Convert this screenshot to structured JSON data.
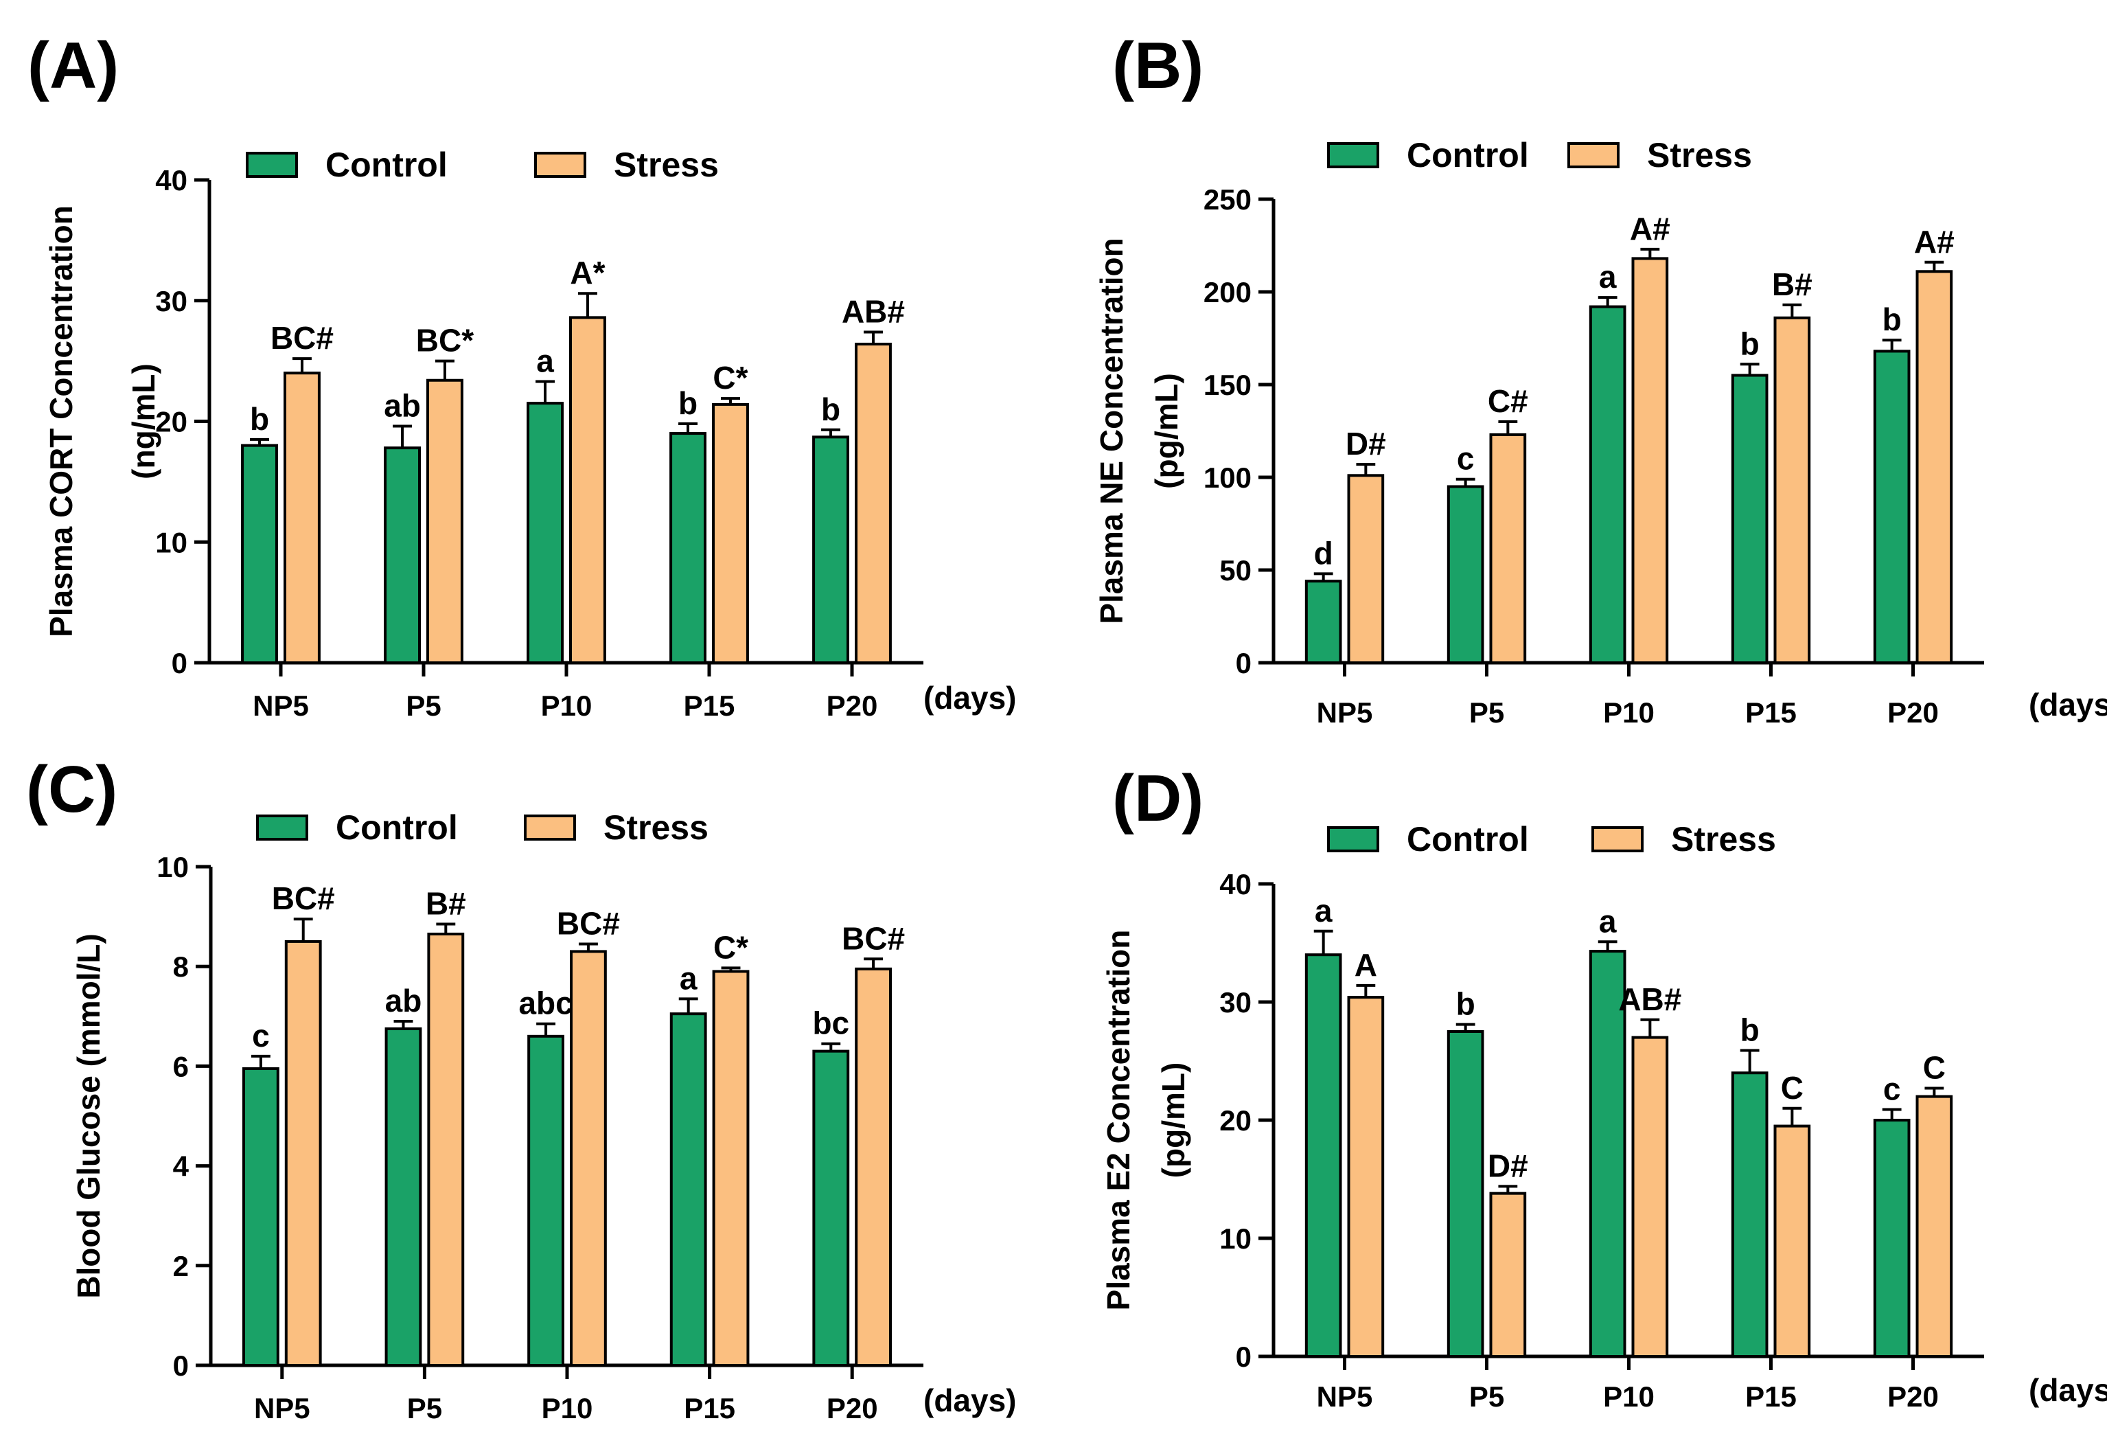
{
  "colors": {
    "control": "#1aa267",
    "stress": "#fbbf80",
    "axis": "#000000"
  },
  "chart_data": [
    {
      "id": "A",
      "type": "bar",
      "panel_label": "(A)",
      "ylabel_line1": "Plasma CORT Concentration",
      "ylabel_line2": "(ng/mL)",
      "xunit": "(days)",
      "categories": [
        "NP5",
        "P5",
        "P10",
        "P15",
        "P20"
      ],
      "ylim": [
        0,
        40
      ],
      "yticks": [
        0,
        10,
        20,
        30,
        40
      ],
      "legend": [
        "Control",
        "Stress"
      ],
      "series": [
        {
          "name": "Control",
          "values": [
            18.0,
            17.8,
            21.5,
            19.0,
            18.7
          ],
          "errors": [
            0.5,
            1.8,
            1.8,
            0.8,
            0.6
          ],
          "labels": [
            "b",
            "ab",
            "a",
            "b",
            "b"
          ]
        },
        {
          "name": "Stress",
          "values": [
            24.0,
            23.4,
            28.6,
            21.4,
            26.4
          ],
          "errors": [
            1.2,
            1.6,
            2.0,
            0.5,
            1.0
          ],
          "labels": [
            "BC#",
            "BC*",
            "A*",
            "C*",
            "AB#"
          ]
        }
      ]
    },
    {
      "id": "B",
      "type": "bar",
      "panel_label": "(B)",
      "ylabel_line1": "Plasma NE Concentration",
      "ylabel_line2": "(pg/mL)",
      "xunit": "(days)",
      "categories": [
        "NP5",
        "P5",
        "P10",
        "P15",
        "P20"
      ],
      "ylim": [
        0,
        250
      ],
      "yticks": [
        0,
        50,
        100,
        150,
        200,
        250
      ],
      "legend": [
        "Control",
        "Stress"
      ],
      "series": [
        {
          "name": "Control",
          "values": [
            44,
            95,
            192,
            155,
            168
          ],
          "errors": [
            4,
            4,
            5,
            6,
            6
          ],
          "labels": [
            "d",
            "c",
            "a",
            "b",
            "b"
          ]
        },
        {
          "name": "Stress",
          "values": [
            101,
            123,
            218,
            186,
            211
          ],
          "errors": [
            6,
            7,
            5,
            7,
            5
          ],
          "labels": [
            "D#",
            "C#",
            "A#",
            "B#",
            "A#"
          ]
        }
      ]
    },
    {
      "id": "C",
      "type": "bar",
      "panel_label": "(C)",
      "ylabel_line1": "Blood Glucose (mmol/L)",
      "ylabel_line2": "",
      "xunit": "(days)",
      "categories": [
        "NP5",
        "P5",
        "P10",
        "P15",
        "P20"
      ],
      "ylim": [
        0,
        10
      ],
      "yticks": [
        0,
        2,
        4,
        6,
        8,
        10
      ],
      "legend": [
        "Control",
        "Stress"
      ],
      "series": [
        {
          "name": "Control",
          "values": [
            5.95,
            6.75,
            6.6,
            7.05,
            6.3
          ],
          "errors": [
            0.25,
            0.15,
            0.25,
            0.3,
            0.15
          ],
          "labels": [
            "c",
            "ab",
            "abc",
            "a",
            "bc"
          ]
        },
        {
          "name": "Stress",
          "values": [
            8.5,
            8.65,
            8.3,
            7.9,
            7.95
          ],
          "errors": [
            0.45,
            0.2,
            0.15,
            0.07,
            0.2
          ],
          "labels": [
            "BC#",
            "B#",
            "BC#",
            "C*",
            "BC#"
          ]
        }
      ]
    },
    {
      "id": "D",
      "type": "bar",
      "panel_label": "(D)",
      "ylabel_line1": "Plasma E2 Concentration",
      "ylabel_line2": "(pg/mL)",
      "xunit": "(days)",
      "categories": [
        "NP5",
        "P5",
        "P10",
        "P15",
        "P20"
      ],
      "ylim": [
        0,
        40
      ],
      "yticks": [
        0,
        10,
        20,
        30,
        40
      ],
      "legend": [
        "Control",
        "Stress"
      ],
      "series": [
        {
          "name": "Control",
          "values": [
            34.0,
            27.5,
            34.3,
            24.0,
            20.0
          ],
          "errors": [
            2.0,
            0.6,
            0.8,
            1.9,
            0.9
          ],
          "labels": [
            "a",
            "b",
            "a",
            "b",
            "c"
          ]
        },
        {
          "name": "Stress",
          "values": [
            30.4,
            13.8,
            27.0,
            19.5,
            22.0
          ],
          "errors": [
            1.0,
            0.6,
            1.5,
            1.5,
            0.7
          ],
          "labels": [
            "A",
            "D#",
            "AB#",
            "C",
            "C"
          ]
        }
      ]
    }
  ]
}
